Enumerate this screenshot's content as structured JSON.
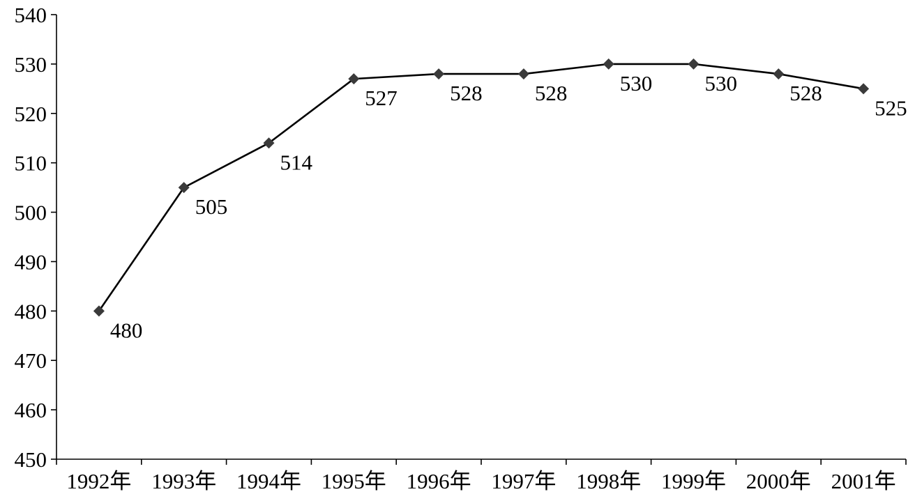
{
  "chart_data": {
    "type": "line",
    "title": "",
    "xlabel": "",
    "ylabel": "",
    "categories": [
      "1992年",
      "1993年",
      "1994年",
      "1995年",
      "1996年",
      "1997年",
      "1998年",
      "1999年",
      "2000年",
      "2001年"
    ],
    "series": [
      {
        "values": [
          480,
          505,
          514,
          527,
          528,
          528,
          530,
          530,
          528,
          525
        ],
        "data_labels": [
          "480",
          "505",
          "514",
          "527",
          "528",
          "528",
          "530",
          "530",
          "528",
          "525"
        ],
        "marker": "diamond",
        "color": "#000000"
      }
    ],
    "ylim": [
      450,
      540
    ],
    "ytick_labels": [
      "450",
      "460",
      "470",
      "480",
      "490",
      "500",
      "510",
      "520",
      "530",
      "540"
    ],
    "grid": false,
    "legend": "none"
  }
}
